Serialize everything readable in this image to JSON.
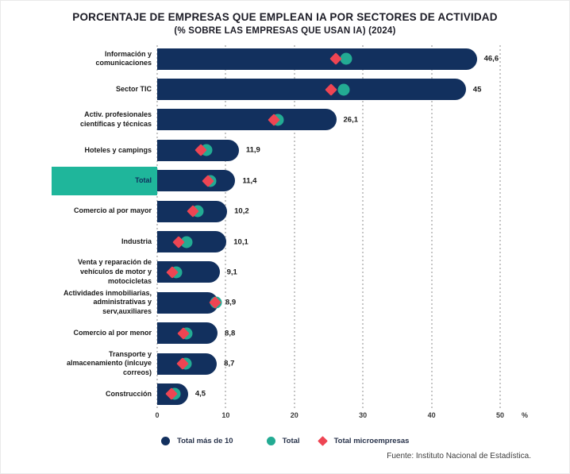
{
  "title": "PORCENTAJE DE EMPRESAS QUE EMPLEAN IA POR SECTORES DE ACTIVIDAD",
  "subtitle": "(% SOBRE LAS EMPRESAS QUE USAN IA) (2024)",
  "footer": {
    "source": "Fuente: Instituto Nacional de Estadística."
  },
  "legend": [
    {
      "label": "Total más de 10",
      "marker": "circle",
      "color": "#12305e"
    },
    {
      "label": "Total",
      "marker": "circle",
      "color": "#23ab93"
    },
    {
      "label": "Total microempresas",
      "marker": "diamond",
      "color": "#ee4553"
    }
  ],
  "colors": {
    "bar_navy": "#12305e",
    "marker_teal": "#23ab93",
    "marker_red": "#ee4553",
    "highlight_teal": "#1fb69b",
    "grid_gray": "#c6c6c6"
  },
  "chart_data": {
    "type": "bar",
    "orientation": "horizontal",
    "title": "PORCENTAJE DE EMPRESAS QUE EMPLEAN IA POR SECTORES DE ACTIVIDAD (% SOBRE LAS EMPRESAS QUE USAN IA) (2024)",
    "xlabel": "%",
    "xlim": [
      0,
      50
    ],
    "x_ticks": [
      0,
      10,
      20,
      30,
      40,
      50
    ],
    "grid": "vertical-dotted",
    "legend_position": "bottom",
    "highlighted_category": "Total",
    "categories": [
      "Información y comunicaciones",
      "Sector TIC",
      "Activ. profesionales científicas y técnicas",
      "Hoteles y campings",
      "Total",
      "Comercio al por mayor",
      "Industria",
      "Venta y reparación de vehículos de motor y motocicletas",
      "Actividades inmobiliarias, administrativas y serv,auxiliares",
      "Comercio al por menor",
      "Transporte y almacenamiento (inlcuye correos)",
      "Construcción"
    ],
    "series": [
      {
        "name": "Total más de 10",
        "values": [
          46.6,
          45,
          26.1,
          11.9,
          11.4,
          10.2,
          10.1,
          9.1,
          8.9,
          8.8,
          8.7,
          4.5
        ]
      },
      {
        "name": "Total",
        "values": [
          27.6,
          27.2,
          17.6,
          7.2,
          7.7,
          5.9,
          4.3,
          2.8,
          8.6,
          4.3,
          4.2,
          2.5
        ]
      },
      {
        "name": "Total microempresas",
        "values": [
          26.0,
          25.3,
          17.0,
          6.4,
          7.4,
          5.2,
          3.1,
          2.2,
          8.4,
          3.8,
          3.7,
          2.1
        ]
      }
    ],
    "value_labels": [
      "46,6",
      "45",
      "26,1",
      "11,9",
      "11,4",
      "10,2",
      "10,1",
      "9,1",
      "8,9",
      "8,8",
      "8,7",
      "4,5"
    ]
  }
}
